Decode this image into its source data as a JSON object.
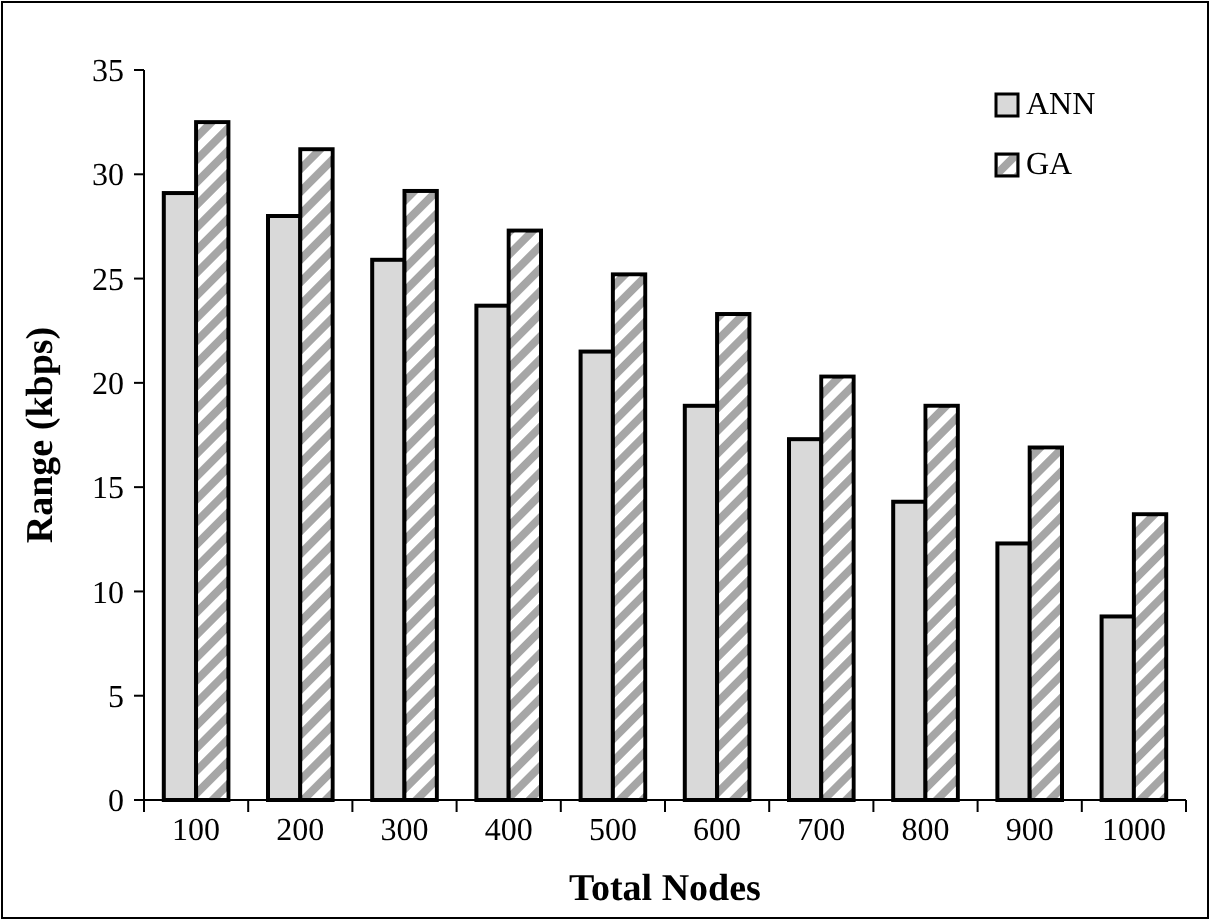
{
  "chart_data": {
    "type": "bar",
    "xlabel": "Total Nodes",
    "ylabel": "Range (kbps)",
    "categories": [
      "100",
      "200",
      "300",
      "400",
      "500",
      "600",
      "700",
      "800",
      "900",
      "1000"
    ],
    "series": [
      {
        "name": "ANN",
        "color": "#d9d9d9",
        "values": [
          29.1,
          28,
          25.9,
          23.7,
          21.5,
          18.9,
          17.3,
          14.3,
          12.3,
          8.8
        ]
      },
      {
        "name": "GA",
        "color": "#a6a6a6",
        "values": [
          32.5,
          31.2,
          29.2,
          27.3,
          25.2,
          23.3,
          20.3,
          18.9,
          16.9,
          13.7
        ]
      }
    ],
    "ylim": [
      0,
      35
    ],
    "yticks": [
      0,
      5,
      10,
      15,
      20,
      25,
      30,
      35
    ],
    "grid": false,
    "legend": "top right"
  }
}
